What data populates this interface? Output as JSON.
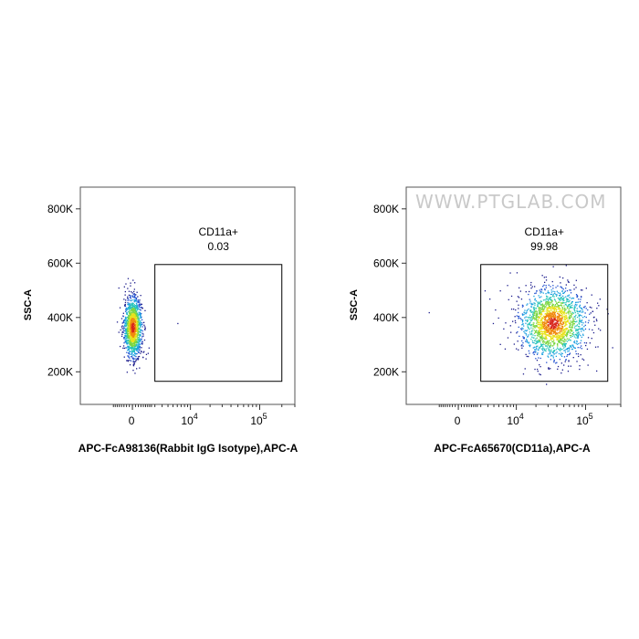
{
  "watermark": "WWW.PTGLAB.COM",
  "chart_data": [
    {
      "type": "scatter",
      "xlabel": "APC-FcA98136(Rabbit IgG Isotype),APC-A",
      "ylabel": "SSC-A",
      "y_ticks": [
        "200K",
        "400K",
        "600K",
        "800K"
      ],
      "y_tick_values": [
        200000,
        400000,
        600000,
        800000
      ],
      "x_tick_labels": [
        {
          "base": "0",
          "exp": ""
        },
        {
          "base": "10",
          "exp": "4"
        },
        {
          "base": "10",
          "exp": "5"
        }
      ],
      "ylim": [
        80000,
        880000
      ],
      "x_scale": "biexponential",
      "gate": {
        "name": "CD11a+",
        "percent": "0.03",
        "x_range": [
          2000,
          200000
        ],
        "y_range": [
          165000,
          595000
        ]
      },
      "populations": [
        {
          "x_center": 0,
          "x_spread": 0.06,
          "y_center": 365000,
          "y_spread": 55000,
          "count": 1400
        }
      ],
      "outliers": [
        [
          6000,
          380000
        ]
      ]
    },
    {
      "type": "scatter",
      "xlabel": "APC-FcA65670(CD11a),APC-A",
      "ylabel": "SSC-A",
      "y_ticks": [
        "200K",
        "400K",
        "600K",
        "800K"
      ],
      "y_tick_values": [
        200000,
        400000,
        600000,
        800000
      ],
      "x_tick_labels": [
        {
          "base": "0",
          "exp": ""
        },
        {
          "base": "10",
          "exp": "4"
        },
        {
          "base": "10",
          "exp": "5"
        }
      ],
      "ylim": [
        80000,
        880000
      ],
      "x_scale": "biexponential",
      "gate": {
        "name": "CD11a+",
        "percent": "99.98",
        "x_range": [
          2000,
          200000
        ],
        "y_range": [
          165000,
          595000
        ]
      },
      "populations": [
        {
          "x_center": 35000,
          "x_spread": 0.22,
          "y_center": 380000,
          "y_spread": 65000,
          "count": 1900
        }
      ],
      "outliers": [
        [
          -3000,
          420000
        ],
        [
          2500,
          500000
        ],
        [
          3200,
          470000
        ],
        [
          4200,
          430000
        ],
        [
          5200,
          500000
        ],
        [
          6000,
          360000
        ],
        [
          3800,
          380000
        ],
        [
          7000,
          520000
        ],
        [
          4800,
          400000
        ]
      ]
    }
  ]
}
